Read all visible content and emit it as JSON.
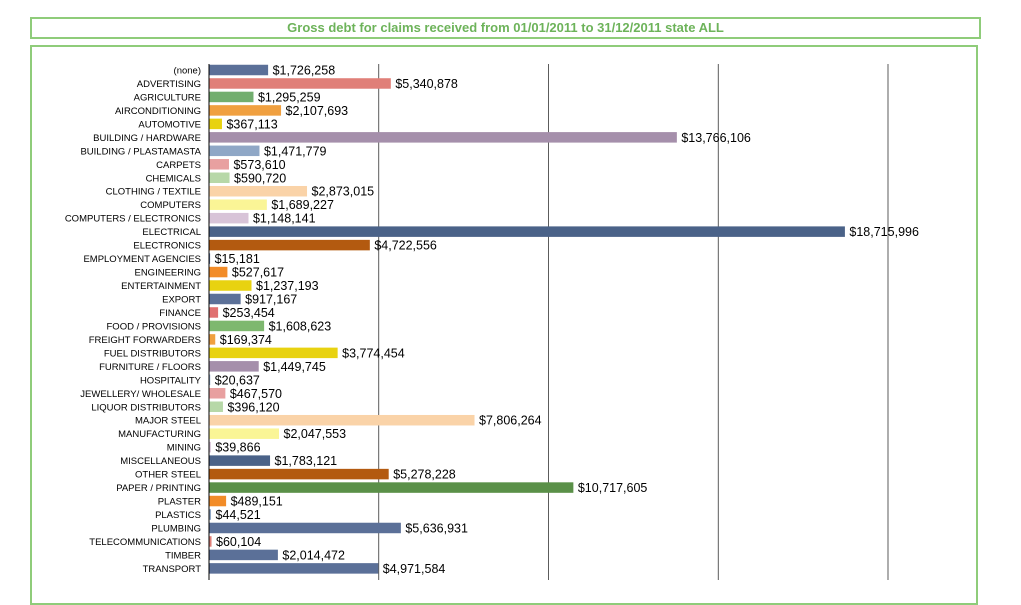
{
  "chart_data": {
    "type": "bar",
    "orientation": "horizontal",
    "title": "Gross debt for claims received from 01/01/2011 to 31/12/2011 state ALL",
    "xlim": [
      0,
      20000000
    ],
    "grid": true,
    "categories": [
      "(none)",
      "ADVERTISING",
      "AGRICULTURE",
      "AIRCONDITIONING",
      "AUTOMOTIVE",
      "BUILDING / HARDWARE",
      "BUILDING / PLASTAMASTA",
      "CARPETS",
      "CHEMICALS",
      "CLOTHING / TEXTILE",
      "COMPUTERS",
      "COMPUTERS / ELECTRONICS",
      "ELECTRICAL",
      "ELECTRONICS",
      "EMPLOYMENT AGENCIES",
      "ENGINEERING",
      "ENTERTAINMENT",
      "EXPORT",
      "FINANCE",
      "FOOD / PROVISIONS",
      "FREIGHT FORWARDERS",
      "FUEL DISTRIBUTORS",
      "FURNITURE / FLOORS",
      "HOSPITALITY",
      "JEWELLERY/ WHOLESALE",
      "LIQUOR DISTRIBUTORS",
      "MAJOR STEEL",
      "MANUFACTURING",
      "MINING",
      "MISCELLANEOUS",
      "OTHER STEEL",
      "PAPER / PRINTING",
      "PLASTER",
      "PLASTICS",
      "PLUMBING",
      "TELECOMMUNICATIONS",
      "TIMBER",
      "TRANSPORT"
    ],
    "values": [
      1726258,
      5340878,
      1295259,
      2107693,
      367113,
      13766106,
      1471779,
      573610,
      590720,
      2873015,
      1689227,
      1148141,
      18715996,
      4722556,
      15181,
      527617,
      1237193,
      917167,
      253454,
      1608623,
      169374,
      3774454,
      1449745,
      20637,
      467570,
      396120,
      7806264,
      2047553,
      39866,
      1783121,
      5278228,
      10717605,
      489151,
      44521,
      5636931,
      60104,
      2014472,
      4971584
    ],
    "labels": [
      "$1,726,258",
      "$5,340,878",
      "$1,295,259",
      "$2,107,693",
      "$367,113",
      "$13,766,106",
      "$1,471,779",
      "$573,610",
      "$590,720",
      "$2,873,015",
      "$1,689,227",
      "$1,148,141",
      "$18,715,996",
      "$4,722,556",
      "$15,181",
      "$527,617",
      "$1,237,193",
      "$917,167",
      "$253,454",
      "$1,608,623",
      "$169,374",
      "$3,774,454",
      "$1,449,745",
      "$20,637",
      "$467,570",
      "$396,120",
      "$7,806,264",
      "$2,047,553",
      "$39,866",
      "$1,783,121",
      "$5,278,228",
      "$10,717,605",
      "$489,151",
      "$44,521",
      "$5,636,931",
      "$60,104",
      "$2,014,472",
      "$4,971,584"
    ],
    "colors": [
      "#5b7098",
      "#e07f78",
      "#72ae6f",
      "#f0a040",
      "#e8d210",
      "#a58fab",
      "#8fa7c6",
      "#e8a0a0",
      "#b7d8a8",
      "#fad3a8",
      "#faf596",
      "#d8c4d8",
      "#4a6288",
      "#b35a10",
      "#5b7098",
      "#f28c28",
      "#e8d210",
      "#5b7098",
      "#e07070",
      "#7eb86f",
      "#f0a040",
      "#e8d210",
      "#a58fab",
      "#8fa7c6",
      "#e8a0a0",
      "#b7d8a8",
      "#fad3a8",
      "#faf596",
      "#d8c4d8",
      "#4a6288",
      "#b35a10",
      "#5a9048",
      "#f28c28",
      "#8fa7c6",
      "#5b7098",
      "#e07f78",
      "#5b7098",
      "#5b7098"
    ]
  }
}
